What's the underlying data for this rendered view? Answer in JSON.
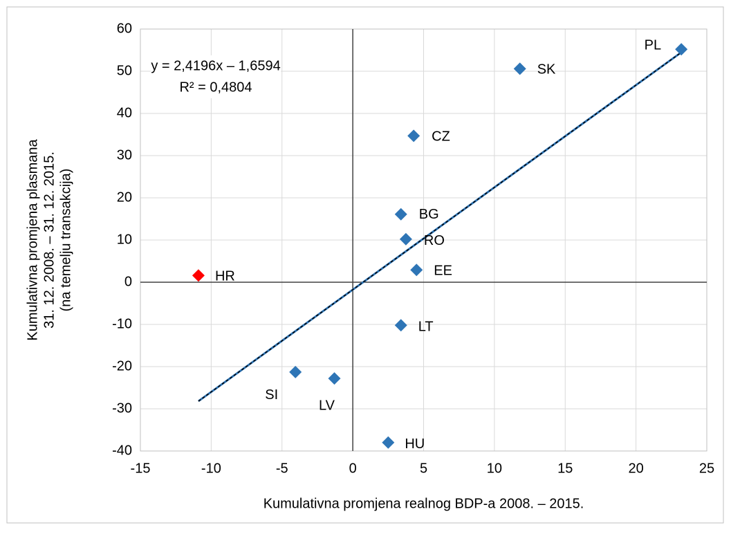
{
  "chart_data": {
    "type": "scatter",
    "xlabel": "Kumulativna promjena realnog BDP-a 2008. – 2015.",
    "ylabel": [
      "Kumulativna promjena plasmana",
      "31. 12. 2008. – 31. 12. 2015.",
      "(na temelju transakcija)"
    ],
    "annotation": [
      "y = 2,4196x – 1,6594",
      "R² = 0,4804"
    ],
    "labels": [
      "PL",
      "SK",
      "CZ",
      "BG",
      "RO",
      "EE",
      "LT",
      "HU",
      "SI",
      "LV",
      "HR"
    ],
    "x": [
      23.2,
      11.8,
      4.3,
      3.4,
      3.75,
      4.5,
      3.4,
      2.5,
      -4.05,
      -1.3,
      -10.9
    ],
    "y": [
      55.2,
      50.6,
      34.7,
      16.1,
      10.2,
      2.9,
      -10.2,
      -38,
      -21.3,
      -22.8,
      1.6
    ],
    "colors": [
      "#2e75b6",
      "#2e75b6",
      "#2e75b6",
      "#2e75b6",
      "#2e75b6",
      "#2e75b6",
      "#2e75b6",
      "#2e75b6",
      "#2e75b6",
      "#2e75b6",
      "#ff0000"
    ],
    "trendline": true,
    "xlim": [
      -15,
      25
    ],
    "xticks": [
      -15,
      -10,
      -5,
      0,
      5,
      10,
      15,
      20,
      25
    ],
    "ylim": [
      -40,
      60
    ],
    "yticks": [
      -40,
      -30,
      -20,
      -10,
      0,
      10,
      20,
      30,
      40,
      50,
      60
    ],
    "grid": true
  }
}
